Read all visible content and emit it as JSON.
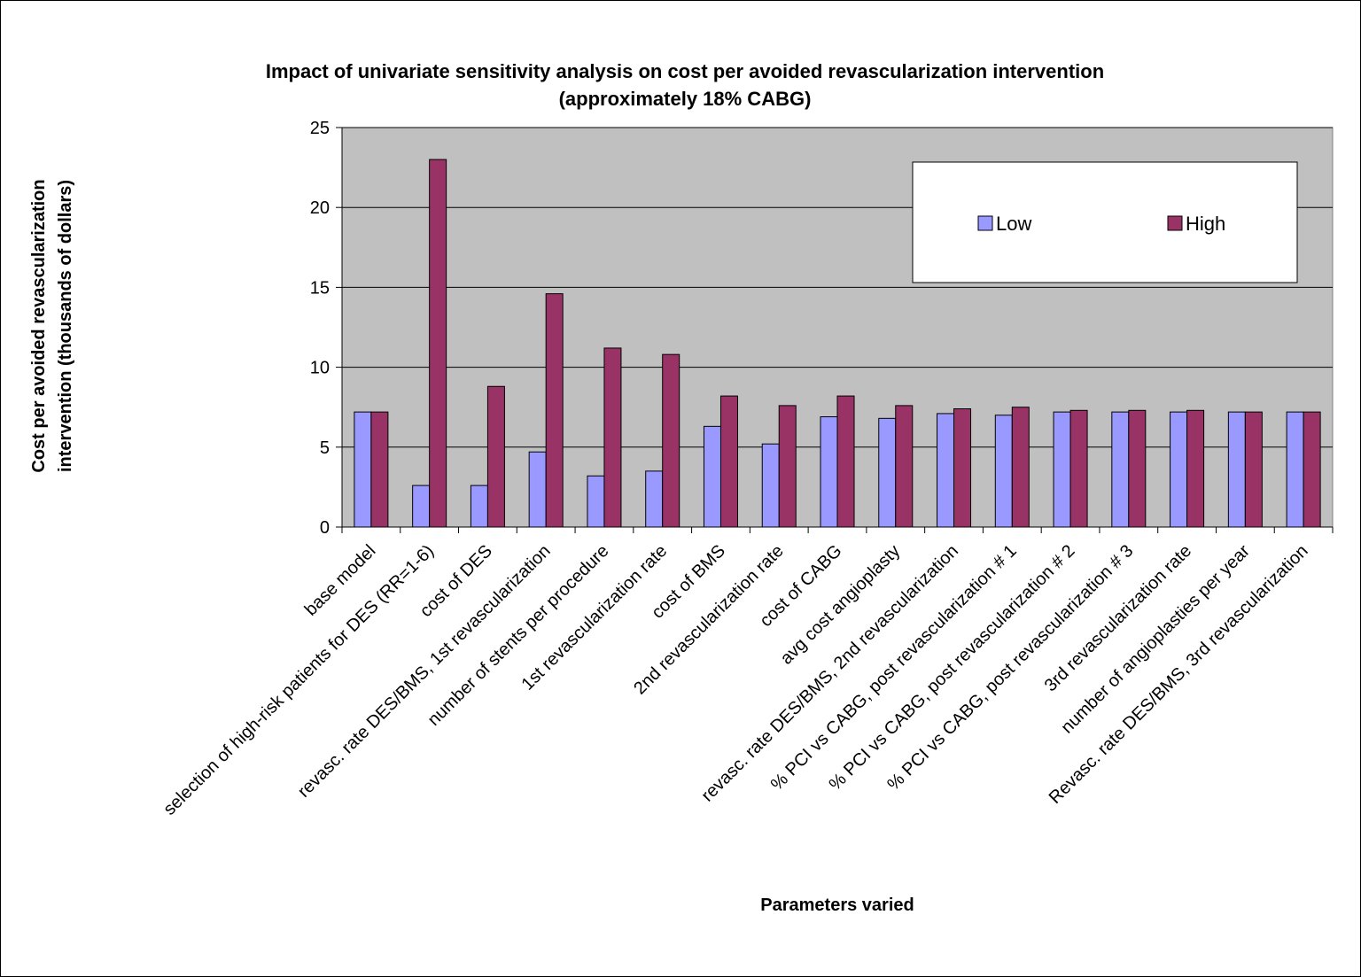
{
  "chart_data": {
    "type": "bar",
    "title": "Impact of univariate sensitivity analysis on cost per avoided revascularization intervention",
    "subtitle": "(approximately 18% CABG)",
    "xlabel": "Parameters varied",
    "ylabel_lines": [
      "Cost per avoided revascularization",
      "intervention (thousands of dollars)"
    ],
    "ylim": [
      0,
      25
    ],
    "yticks": [
      "0",
      "5",
      "10",
      "15",
      "20",
      "25"
    ],
    "grid": true,
    "legend_position": "top-right",
    "categories": [
      "base model",
      "selection of high-risk patients for DES (RR=1-6)",
      "cost of DES",
      "revasc. rate DES/BMS, 1st revascularization",
      "number of stents per procedure",
      "1st revascularization rate",
      "cost of BMS",
      "2nd revascularization rate",
      "cost of CABG",
      "avg cost angioplasty",
      "revasc. rate DES/BMS, 2nd revascularization",
      "% PCI vs CABG, post revascularization # 1",
      "% PCI vs CABG, post revascularization # 2",
      "% PCI vs CABG, post revascularization # 3",
      "3rd revascularization rate",
      "number of angioplasties per year",
      "Revasc. rate DES/BMS, 3rd revascularization"
    ],
    "series": [
      {
        "name": "Low",
        "color": "#9999ff",
        "values": [
          7.2,
          2.6,
          2.6,
          4.7,
          3.2,
          3.5,
          6.3,
          5.2,
          6.9,
          6.8,
          7.1,
          7.0,
          7.2,
          7.2,
          7.2,
          7.2,
          7.2
        ]
      },
      {
        "name": "High",
        "color": "#993366",
        "values": [
          7.2,
          23.0,
          8.8,
          14.6,
          11.2,
          10.8,
          8.2,
          7.6,
          8.2,
          7.6,
          7.4,
          7.5,
          7.3,
          7.3,
          7.3,
          7.2,
          7.2
        ]
      }
    ]
  },
  "colors": {
    "plot_background": "#c0c0c0",
    "gridline": "#000000",
    "bar_outline": "#000000"
  }
}
